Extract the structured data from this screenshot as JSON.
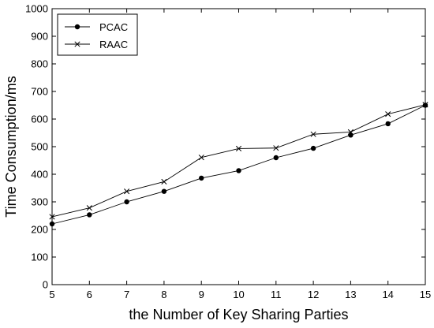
{
  "chart_data": {
    "type": "line",
    "xlabel": "the Number of Key Sharing Parties",
    "ylabel": "Time Consumption/ms",
    "xlim": [
      5,
      15
    ],
    "ylim": [
      0,
      1000
    ],
    "xticks": [
      5,
      6,
      7,
      8,
      9,
      10,
      11,
      12,
      13,
      14,
      15
    ],
    "yticks": [
      0,
      100,
      200,
      300,
      400,
      500,
      600,
      700,
      800,
      900,
      1000
    ],
    "grid": false,
    "legend_position": "top-left",
    "x": [
      5,
      6,
      7,
      8,
      9,
      10,
      11,
      12,
      13,
      14,
      15
    ],
    "series": [
      {
        "name": "PCAC",
        "marker": "filled-circle",
        "color": "#000000",
        "values": [
          220,
          253,
          300,
          338,
          386,
          413,
          460,
          494,
          542,
          583,
          650
        ]
      },
      {
        "name": "RAAC",
        "marker": "x-cross",
        "color": "#000000",
        "values": [
          246,
          278,
          338,
          373,
          461,
          493,
          495,
          545,
          553,
          618,
          652
        ]
      }
    ]
  }
}
